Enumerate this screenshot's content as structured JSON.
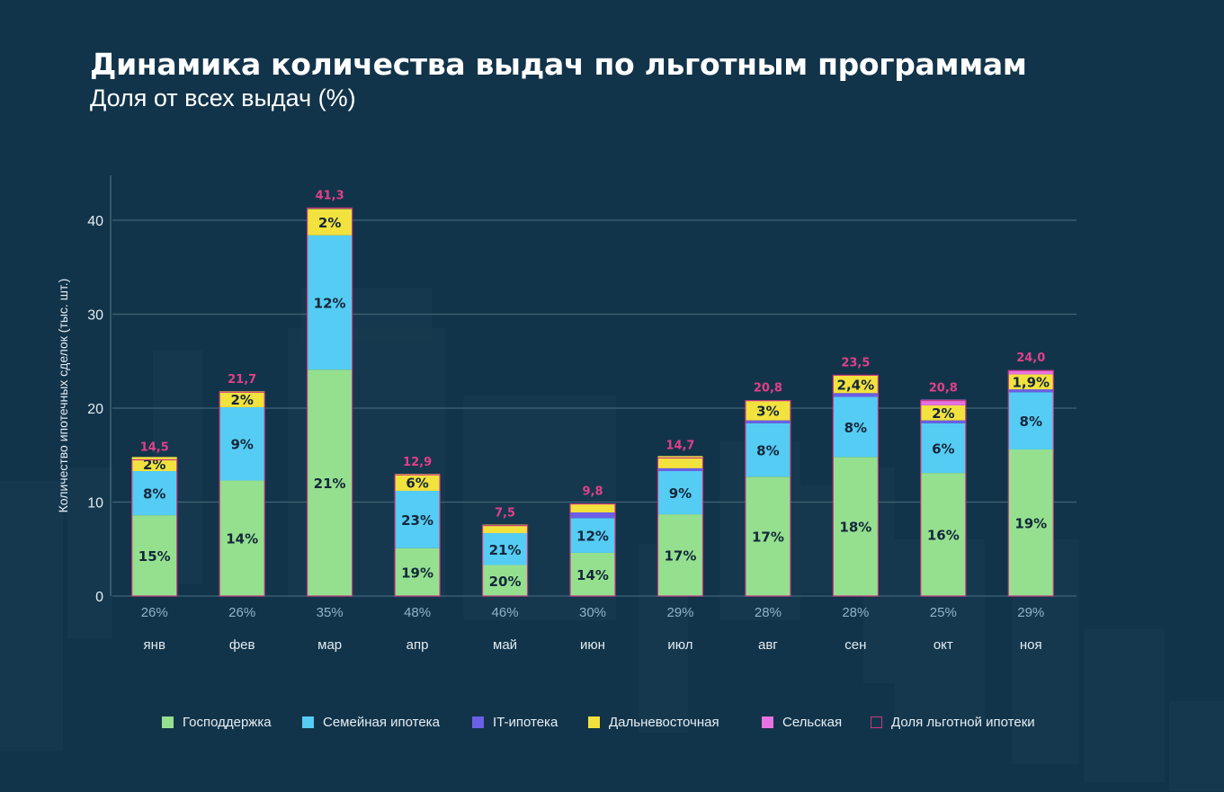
{
  "header": {
    "title": "Динамика количества выдач по льготным программам",
    "subtitle": "Доля от всех выдач (%)"
  },
  "colors": {
    "background": "#12344a",
    "gridline": "#3e6376",
    "axis_text": "#e3ecf2",
    "share_text": "#8fb4c8",
    "total_label": "#e0408a",
    "segment_text": "#14273a",
    "gosp": "#95e08f",
    "family": "#55ccf4",
    "it": "#6b5ee8",
    "far_east": "#f2e23d",
    "rural": "#e772e2",
    "share_outline": "#c63a80"
  },
  "legend": [
    {
      "key": "gosp",
      "label": "Господдержка",
      "type": "fill"
    },
    {
      "key": "family",
      "label": "Семейная ипотека",
      "type": "fill"
    },
    {
      "key": "it",
      "label": "IT-ипотека",
      "type": "fill"
    },
    {
      "key": "far_east",
      "label": "Дальневосточная",
      "type": "fill"
    },
    {
      "key": "rural",
      "label": "Сельская",
      "type": "fill"
    },
    {
      "key": "share_outline",
      "label": "Доля льготной ипотеки",
      "type": "outline"
    }
  ],
  "chart_data": {
    "type": "bar",
    "stacked": true,
    "title": "Динамика количества выдач по льготным программам",
    "subtitle": "Доля от всех выдач (%)",
    "ylabel": "Количество ипотечных сделок (тыс. шт.)",
    "xlabel": "",
    "ylim": [
      0,
      45
    ],
    "yticks": [
      0,
      10,
      20,
      30,
      40
    ],
    "grid": true,
    "legend_position": "bottom",
    "categories": [
      "янв",
      "фев",
      "мар",
      "апр",
      "май",
      "июн",
      "июл",
      "авг",
      "сен",
      "окт",
      "ноя"
    ],
    "totals": [
      14.5,
      21.7,
      41.3,
      12.9,
      7.5,
      9.8,
      14.7,
      20.8,
      23.5,
      20.8,
      24.0
    ],
    "total_labels": [
      "14,5",
      "21,7",
      "41,3",
      "12,9",
      "7,5",
      "9,8",
      "14,7",
      "20,8",
      "23,5",
      "20,8",
      "24,0"
    ],
    "share_labels": [
      "26%",
      "26%",
      "35%",
      "48%",
      "46%",
      "30%",
      "29%",
      "28%",
      "28%",
      "25%",
      "29%"
    ],
    "series": [
      {
        "key": "gosp",
        "name": "Господдержка",
        "values": [
          8.6,
          12.3,
          24.1,
          5.1,
          3.3,
          4.6,
          8.7,
          12.7,
          14.8,
          13.1,
          15.6
        ],
        "labels": [
          "15%",
          "14%",
          "21%",
          "19%",
          "20%",
          "14%",
          "17%",
          "17%",
          "18%",
          "16%",
          "19%"
        ]
      },
      {
        "key": "family",
        "name": "Семейная ипотека",
        "values": [
          4.7,
          7.8,
          14.3,
          6.1,
          3.4,
          3.7,
          4.6,
          5.7,
          6.4,
          5.3,
          6.1
        ],
        "labels": [
          "8%",
          "9%",
          "12%",
          "23%",
          "21%",
          "12%",
          "9%",
          "8%",
          "8%",
          "6%",
          "8%"
        ]
      },
      {
        "key": "it",
        "name": "IT-ипотека",
        "values": [
          0.0,
          0.0,
          0.0,
          0.0,
          0.0,
          0.6,
          0.3,
          0.3,
          0.4,
          0.3,
          0.3
        ],
        "labels": [
          "",
          "",
          "",
          "",
          "",
          "",
          "",
          "",
          "",
          "",
          ""
        ]
      },
      {
        "key": "far_east",
        "name": "Дальневосточная",
        "values": [
          1.5,
          1.7,
          2.8,
          1.8,
          0.9,
          0.9,
          1.3,
          2.1,
          1.9,
          1.6,
          1.6
        ],
        "labels": [
          "2%",
          "2%",
          "2%",
          "6%",
          "",
          "",
          "",
          "3%",
          "2,4%",
          "2%",
          "1,9%"
        ]
      },
      {
        "key": "rural",
        "name": "Сельская",
        "values": [
          0.0,
          0.0,
          0.0,
          0.0,
          0.0,
          0.0,
          0.0,
          0.0,
          0.0,
          0.6,
          0.4
        ],
        "labels": [
          "",
          "",
          "",
          "",
          "",
          "",
          "",
          "",
          "",
          "",
          ""
        ]
      }
    ]
  }
}
